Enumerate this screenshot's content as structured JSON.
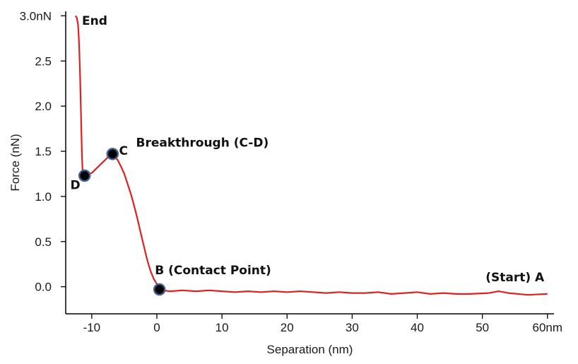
{
  "chart_data": {
    "type": "line",
    "xlabel": "Separation (nm)",
    "ylabel": "Force (nN)",
    "xlim": [
      -14,
      61
    ],
    "ylim": [
      -0.3,
      3.05
    ],
    "x_ticks": [
      {
        "value": -10,
        "label": "-10"
      },
      {
        "value": 0,
        "label": "0"
      },
      {
        "value": 10,
        "label": "10"
      },
      {
        "value": 20,
        "label": "20"
      },
      {
        "value": 30,
        "label": "30"
      },
      {
        "value": 40,
        "label": "40"
      },
      {
        "value": 50,
        "label": "50"
      },
      {
        "value": 60,
        "label": "60nm"
      }
    ],
    "y_ticks": [
      {
        "value": 0.0,
        "label": "0.0"
      },
      {
        "value": 0.5,
        "label": "0.5"
      },
      {
        "value": 1.0,
        "label": "1.0"
      },
      {
        "value": 1.5,
        "label": "1.5"
      },
      {
        "value": 2.0,
        "label": "2.0"
      },
      {
        "value": 2.5,
        "label": "2.5"
      },
      {
        "value": 3.0,
        "label": "3.0nN"
      }
    ],
    "grid": false,
    "line_color": "#e02020",
    "marker_color": "#000000",
    "marker_edge_color": "#3f5f8f",
    "series": [
      {
        "x": [
          60,
          57,
          54,
          52.5,
          51,
          48,
          46,
          44,
          42,
          40,
          38,
          36,
          34,
          32,
          30,
          28,
          26,
          24,
          22,
          20,
          18,
          16,
          14,
          12,
          10,
          8,
          6,
          4,
          2,
          1,
          0.5,
          0.4,
          0.0,
          -0.5,
          -1.0,
          -1.5,
          -2.0,
          -2.5,
          -3.0,
          -3.5,
          -4.0,
          -4.5,
          -5.0,
          -5.5,
          -6.0,
          -6.5,
          -6.8,
          -7.0,
          -8.0,
          -9.0,
          -10.0,
          -11.1,
          -11.4,
          -11.5,
          -11.6,
          -11.7,
          -11.8,
          -11.9,
          -12.0,
          -12.1,
          -12.3,
          -12.5
        ],
        "y": [
          -0.08,
          -0.09,
          -0.07,
          -0.05,
          -0.07,
          -0.08,
          -0.08,
          -0.07,
          -0.08,
          -0.06,
          -0.07,
          -0.08,
          -0.06,
          -0.07,
          -0.07,
          -0.06,
          -0.07,
          -0.06,
          -0.05,
          -0.06,
          -0.05,
          -0.06,
          -0.05,
          -0.06,
          -0.05,
          -0.04,
          -0.05,
          -0.04,
          -0.05,
          -0.04,
          -0.03,
          -0.03,
          0.03,
          0.09,
          0.18,
          0.3,
          0.45,
          0.6,
          0.76,
          0.9,
          1.03,
          1.14,
          1.25,
          1.33,
          1.4,
          1.45,
          1.47,
          1.47,
          1.4,
          1.33,
          1.26,
          1.23,
          1.26,
          1.45,
          1.75,
          2.05,
          2.35,
          2.6,
          2.78,
          2.9,
          2.98,
          3.0
        ]
      }
    ],
    "points": [
      {
        "name": "B",
        "x": 0.4,
        "y": -0.03
      },
      {
        "name": "C",
        "x": -6.8,
        "y": 1.47
      },
      {
        "name": "D",
        "x": -11.1,
        "y": 1.23
      }
    ],
    "annotations": [
      {
        "text": "End",
        "x": -11.5,
        "y": 2.9,
        "anchor": "start"
      },
      {
        "text": "C",
        "x": -5.8,
        "y": 1.46,
        "anchor": "start"
      },
      {
        "text": "Breakthrough (C-D)",
        "x": -3.2,
        "y": 1.55,
        "anchor": "start"
      },
      {
        "text": "D",
        "x": -13.3,
        "y": 1.08,
        "anchor": "start"
      },
      {
        "text": "B (Contact Point)",
        "x": -0.3,
        "y": 0.14,
        "anchor": "start"
      },
      {
        "text": "(Start) A",
        "x": 50.5,
        "y": 0.06,
        "anchor": "start"
      }
    ]
  }
}
